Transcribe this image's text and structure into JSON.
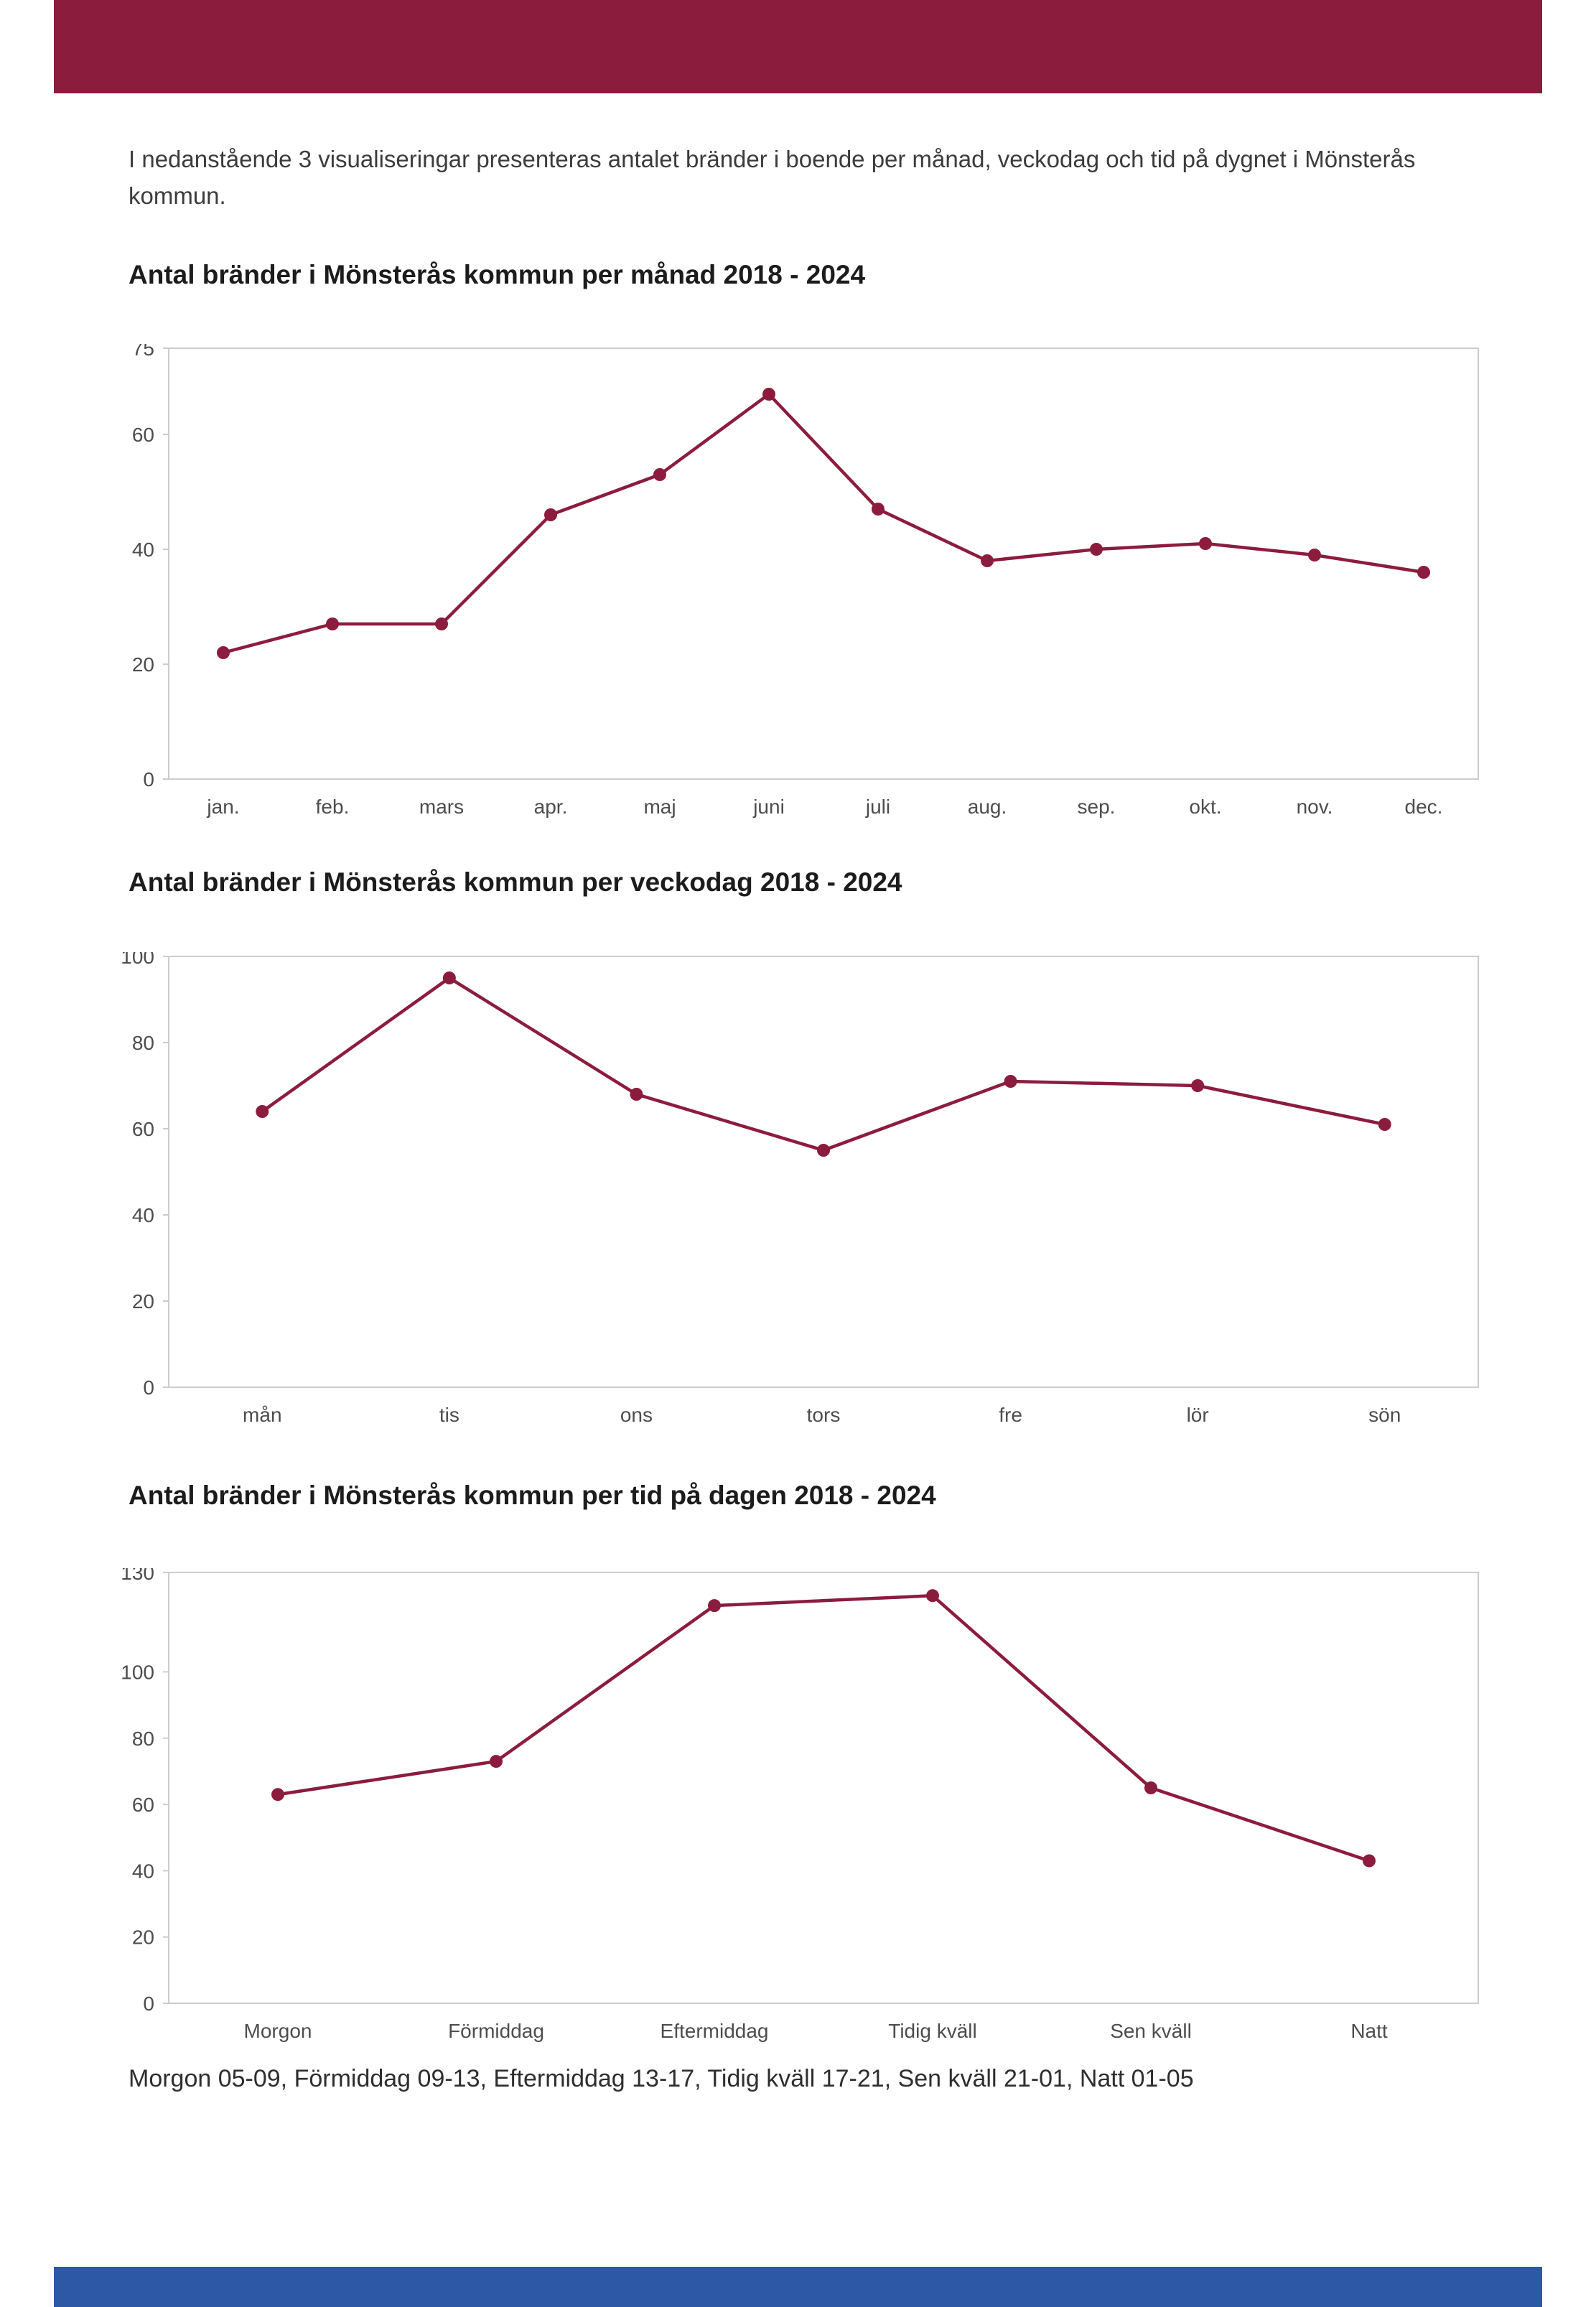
{
  "page": {
    "accent_color": "#8C1C3D",
    "footer_bar_color": "#2C58A6",
    "intro": "I nedanstående 3 visualiseringar presenteras antalet bränder i boende per månad, veckodag och tid på dygnet i Mönsterås kommun.",
    "footnote": "Morgon 05-09, Förmiddag 09-13, Eftermiddag 13-17, Tidig kväll 17-21, Sen kväll 21-01, Natt 01-05"
  },
  "chart_data": [
    {
      "type": "line",
      "title": "Antal bränder i Mönsterås kommun per månad 2018 - 2024",
      "categories": [
        "jan.",
        "feb.",
        "mars",
        "apr.",
        "maj",
        "juni",
        "juli",
        "aug.",
        "sep.",
        "okt.",
        "nov.",
        "dec."
      ],
      "values": [
        22,
        27,
        27,
        46,
        53,
        67,
        47,
        38,
        40,
        41,
        39,
        36
      ],
      "yticks": [
        0,
        20,
        40,
        60,
        75
      ],
      "ylim": [
        0,
        75
      ],
      "xlabel": "",
      "ylabel": "",
      "grid": false,
      "legend": "none",
      "line_color": "#8C1C3D",
      "marker": "circle"
    },
    {
      "type": "line",
      "title": "Antal bränder i Mönsterås kommun per veckodag 2018 - 2024",
      "categories": [
        "mån",
        "tis",
        "ons",
        "tors",
        "fre",
        "lör",
        "sön"
      ],
      "values": [
        64,
        95,
        68,
        55,
        71,
        70,
        61
      ],
      "yticks": [
        0,
        20,
        40,
        60,
        80,
        100
      ],
      "ylim": [
        0,
        100
      ],
      "xlabel": "",
      "ylabel": "",
      "grid": false,
      "legend": "none",
      "line_color": "#8C1C3D",
      "marker": "circle"
    },
    {
      "type": "line",
      "title": "Antal bränder i Mönsterås kommun per tid på dagen 2018 - 2024",
      "categories": [
        "Morgon",
        "Förmiddag",
        "Eftermiddag",
        "Tidig kväll",
        "Sen kväll",
        "Natt"
      ],
      "values": [
        63,
        73,
        120,
        123,
        65,
        43
      ],
      "yticks": [
        0,
        20,
        40,
        60,
        80,
        100,
        130
      ],
      "ylim": [
        0,
        130
      ],
      "xlabel": "",
      "ylabel": "",
      "grid": false,
      "legend": "none",
      "line_color": "#8C1C3D",
      "marker": "circle"
    }
  ]
}
